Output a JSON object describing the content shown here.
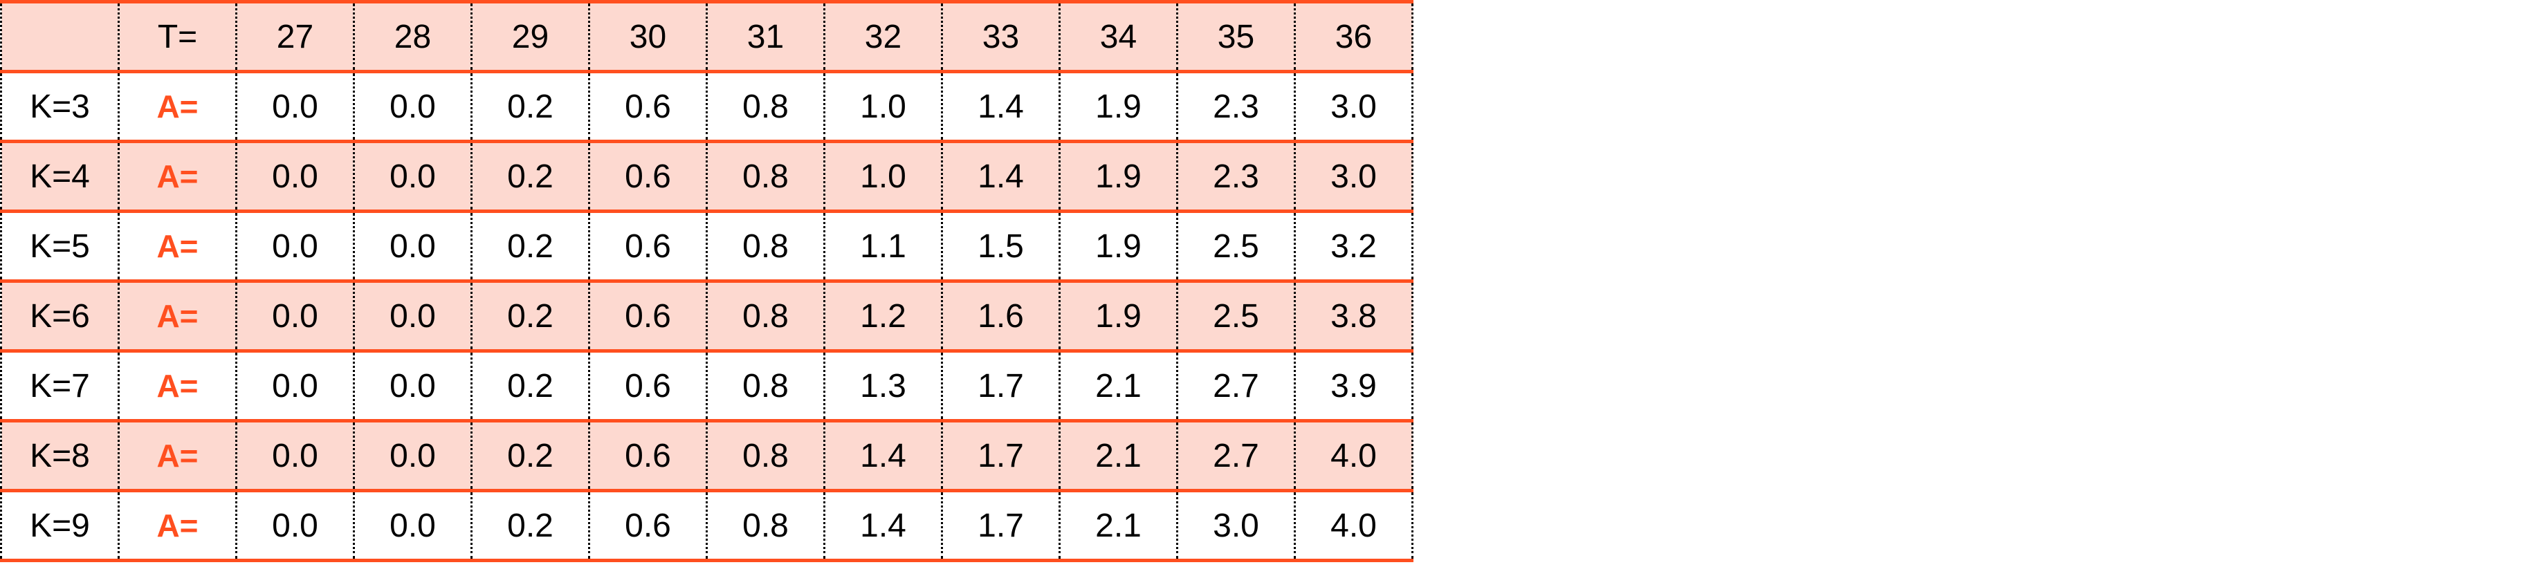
{
  "colors": {
    "accent": "#ff4f1f",
    "shade": "#fdd9d0"
  },
  "header": {
    "corner": "",
    "t_label": "T=",
    "t_values": [
      "27",
      "28",
      "29",
      "30",
      "31",
      "32",
      "33",
      "34",
      "35",
      "36"
    ]
  },
  "rows": [
    {
      "k": "K=3",
      "a": "A=",
      "values": [
        "0.0",
        "0.0",
        "0.2",
        "0.6",
        "0.8",
        "1.0",
        "1.4",
        "1.9",
        "2.3",
        "3.0"
      ]
    },
    {
      "k": "K=4",
      "a": "A=",
      "values": [
        "0.0",
        "0.0",
        "0.2",
        "0.6",
        "0.8",
        "1.0",
        "1.4",
        "1.9",
        "2.3",
        "3.0"
      ]
    },
    {
      "k": "K=5",
      "a": "A=",
      "values": [
        "0.0",
        "0.0",
        "0.2",
        "0.6",
        "0.8",
        "1.1",
        "1.5",
        "1.9",
        "2.5",
        "3.2"
      ]
    },
    {
      "k": "K=6",
      "a": "A=",
      "values": [
        "0.0",
        "0.0",
        "0.2",
        "0.6",
        "0.8",
        "1.2",
        "1.6",
        "1.9",
        "2.5",
        "3.8"
      ]
    },
    {
      "k": "K=7",
      "a": "A=",
      "values": [
        "0.0",
        "0.0",
        "0.2",
        "0.6",
        "0.8",
        "1.3",
        "1.7",
        "2.1",
        "2.7",
        "3.9"
      ]
    },
    {
      "k": "K=8",
      "a": "A=",
      "values": [
        "0.0",
        "0.0",
        "0.2",
        "0.6",
        "0.8",
        "1.4",
        "1.7",
        "2.1",
        "2.7",
        "4.0"
      ]
    },
    {
      "k": "K=9",
      "a": "A=",
      "values": [
        "0.0",
        "0.0",
        "0.2",
        "0.6",
        "0.8",
        "1.4",
        "1.7",
        "2.1",
        "3.0",
        "4.0"
      ]
    }
  ]
}
